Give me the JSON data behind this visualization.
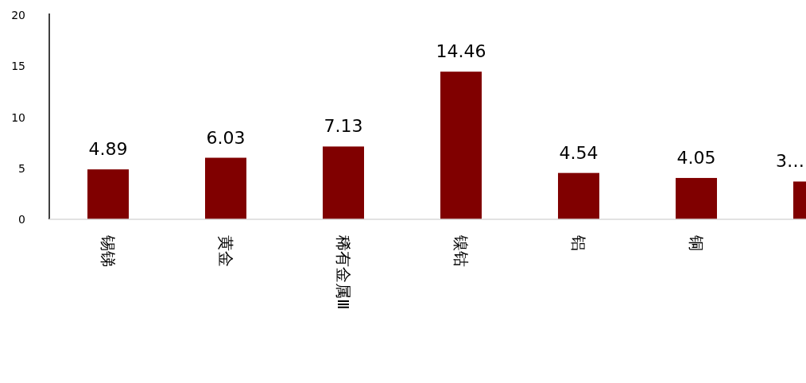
{
  "chart_data": {
    "type": "bar",
    "categories": [
      "锡锑",
      "黄金",
      "稀有金属Ⅲ",
      "镍钴",
      "铝",
      "铜",
      null
    ],
    "values": [
      4.89,
      6.03,
      7.13,
      14.46,
      4.54,
      4.05,
      3.7
    ],
    "value_labels": [
      "4.89",
      "6.03",
      "7.13",
      "14.46",
      "4.54",
      "4.05",
      "3…"
    ],
    "color": "#800000",
    "ylim": [
      0,
      20
    ],
    "yticks": [
      0,
      5,
      10,
      15,
      20
    ],
    "grid": false
  }
}
